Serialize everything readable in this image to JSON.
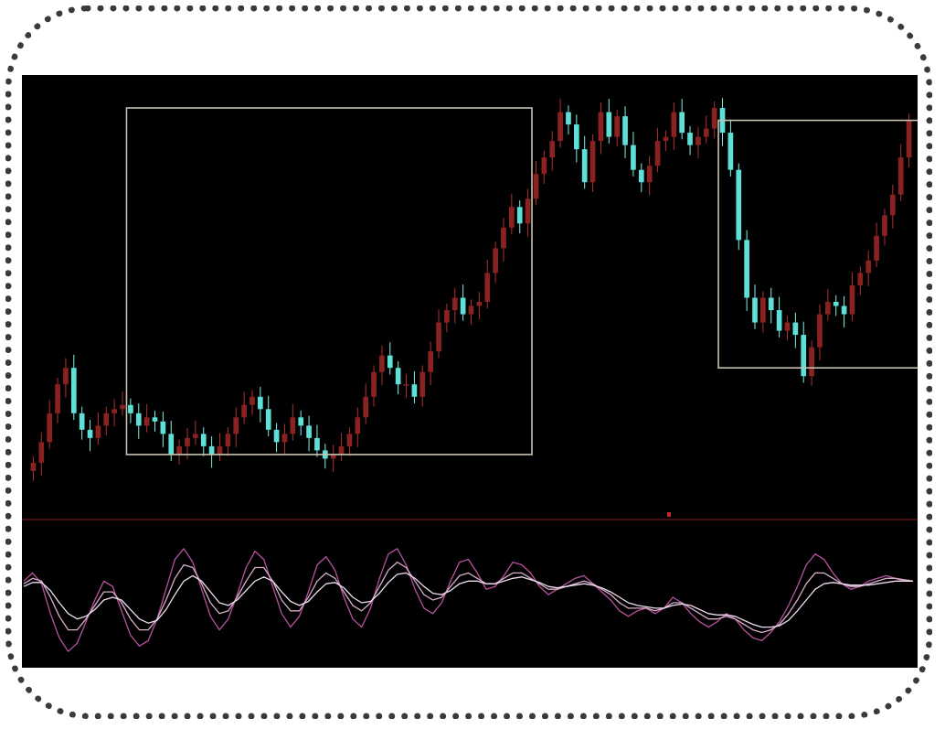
{
  "chart_data": {
    "type": "candlestick",
    "title": "",
    "xlabel": "",
    "ylabel": "",
    "price_panel": {
      "open": [
        46.0,
        48.0,
        53.0,
        60.0,
        67.0,
        71.0,
        60.0,
        56.0,
        54.0,
        57.0,
        60.0,
        61.0,
        62.0,
        60.0,
        57.0,
        59.0,
        58.0,
        55.0,
        50.0,
        52.0,
        54.0,
        55.0,
        52.0,
        50.0,
        52.0,
        55.0,
        59.0,
        62.0,
        64.0,
        61.0,
        56.0,
        53.0,
        55.0,
        59.0,
        57.0,
        54.0,
        51.0,
        49.0,
        50.0,
        52.0,
        55.0,
        59.0,
        64.0,
        70.0,
        74.0,
        71.0,
        67.0,
        67.0,
        64.0,
        70.0,
        75.0,
        82.0,
        85.0,
        88.0,
        84.0,
        86.0,
        87.0,
        94.0,
        100.0,
        105.0,
        110.0,
        106.0,
        112.0,
        118.0,
        122.0,
        126.0,
        133.0,
        130.0,
        124.0,
        116.0,
        126.0,
        133.0,
        127.0,
        132.0,
        125.0,
        119.0,
        116.0,
        120.0,
        126.0,
        127.0,
        133.0,
        128.0,
        125.0,
        127.0,
        129.0,
        134.0,
        128.0,
        119.0,
        102.0,
        88.0,
        82.0,
        88.0,
        85.0,
        80.0,
        82.0,
        79.0,
        69.0,
        76.0,
        84.0,
        87.0,
        86.0,
        84.0,
        91.0,
        94.0,
        97.0,
        103.0,
        108.0,
        113.0,
        122.0
      ],
      "close": [
        48.0,
        53.0,
        60.0,
        67.0,
        71.0,
        60.0,
        56.0,
        54.0,
        57.0,
        60.0,
        61.0,
        62.0,
        60.0,
        57.0,
        59.0,
        58.0,
        55.0,
        50.0,
        52.0,
        54.0,
        55.0,
        52.0,
        50.0,
        52.0,
        55.0,
        59.0,
        62.0,
        64.0,
        61.0,
        56.0,
        53.0,
        55.0,
        59.0,
        57.0,
        54.0,
        51.0,
        49.0,
        50.0,
        52.0,
        55.0,
        59.0,
        64.0,
        70.0,
        74.0,
        71.0,
        67.0,
        67.0,
        64.0,
        70.0,
        75.0,
        82.0,
        85.0,
        88.0,
        84.0,
        86.0,
        87.0,
        94.0,
        100.0,
        105.0,
        110.0,
        106.0,
        112.0,
        118.0,
        122.0,
        126.0,
        133.0,
        130.0,
        124.0,
        116.0,
        126.0,
        133.0,
        127.0,
        132.0,
        125.0,
        119.0,
        116.0,
        120.0,
        126.0,
        127.0,
        133.0,
        128.0,
        125.0,
        127.0,
        129.0,
        134.0,
        128.0,
        119.0,
        102.0,
        88.0,
        82.0,
        88.0,
        85.0,
        80.0,
        82.0,
        79.0,
        69.0,
        76.0,
        84.0,
        87.0,
        86.0,
        84.0,
        91.0,
        94.0,
        97.0,
        103.0,
        108.0,
        113.0,
        122.0,
        131.0
      ],
      "ylim": [
        40,
        138
      ],
      "boxes": [
        {
          "from": 12,
          "to": 61,
          "low": 50.0,
          "high": 134.0
        },
        {
          "from": 85,
          "to": 109,
          "low": 71.0,
          "high": 131.0
        }
      ]
    },
    "oscillator_panel": {
      "ylim": [
        0,
        100
      ],
      "series": [
        {
          "color": "#b8529e",
          "values": [
            64,
            70,
            62,
            40,
            22,
            12,
            18,
            34,
            50,
            64,
            60,
            42,
            24,
            16,
            20,
            36,
            58,
            80,
            88,
            78,
            58,
            38,
            28,
            36,
            54,
            74,
            86,
            80,
            60,
            40,
            30,
            38,
            56,
            76,
            82,
            72,
            52,
            36,
            30,
            44,
            66,
            84,
            88,
            76,
            58,
            44,
            40,
            48,
            64,
            78,
            80,
            70,
            58,
            60,
            68,
            78,
            76,
            70,
            60,
            54,
            58,
            62,
            66,
            68,
            62,
            56,
            50,
            42,
            38,
            42,
            44,
            40,
            44,
            52,
            48,
            40,
            34,
            30,
            34,
            40,
            36,
            28,
            22,
            20,
            26,
            34,
            46,
            60,
            76,
            84,
            80,
            70,
            62,
            58,
            60,
            64,
            66,
            68,
            66,
            64,
            64
          ]
        },
        {
          "color": "#d8aecb",
          "values": [
            62,
            66,
            64,
            52,
            38,
            28,
            28,
            36,
            46,
            56,
            56,
            48,
            36,
            28,
            28,
            36,
            50,
            66,
            76,
            74,
            62,
            48,
            40,
            42,
            52,
            64,
            74,
            74,
            64,
            50,
            42,
            42,
            52,
            64,
            70,
            66,
            56,
            46,
            42,
            48,
            60,
            72,
            78,
            74,
            64,
            54,
            50,
            52,
            60,
            68,
            70,
            66,
            62,
            62,
            66,
            70,
            70,
            66,
            62,
            58,
            58,
            60,
            62,
            64,
            62,
            58,
            54,
            48,
            44,
            44,
            44,
            42,
            44,
            48,
            48,
            44,
            40,
            36,
            36,
            38,
            36,
            32,
            28,
            26,
            28,
            32,
            40,
            50,
            62,
            70,
            70,
            66,
            62,
            60,
            60,
            62,
            64,
            66,
            66,
            65,
            64
          ]
        },
        {
          "color": "#eeddf0",
          "values": [
            60,
            63,
            63,
            57,
            48,
            40,
            36,
            38,
            43,
            50,
            52,
            50,
            43,
            36,
            33,
            35,
            43,
            54,
            64,
            68,
            64,
            56,
            48,
            46,
            50,
            57,
            64,
            67,
            64,
            56,
            49,
            46,
            49,
            56,
            62,
            63,
            59,
            52,
            48,
            49,
            55,
            63,
            69,
            70,
            66,
            60,
            55,
            54,
            57,
            62,
            64,
            64,
            62,
            62,
            64,
            66,
            67,
            65,
            63,
            60,
            59,
            60,
            61,
            62,
            61,
            59,
            56,
            52,
            48,
            46,
            45,
            44,
            44,
            46,
            47,
            46,
            43,
            40,
            39,
            39,
            38,
            35,
            32,
            30,
            30,
            31,
            35,
            42,
            50,
            58,
            62,
            63,
            62,
            61,
            61,
            61,
            62,
            63,
            64,
            64,
            64
          ]
        }
      ]
    }
  }
}
